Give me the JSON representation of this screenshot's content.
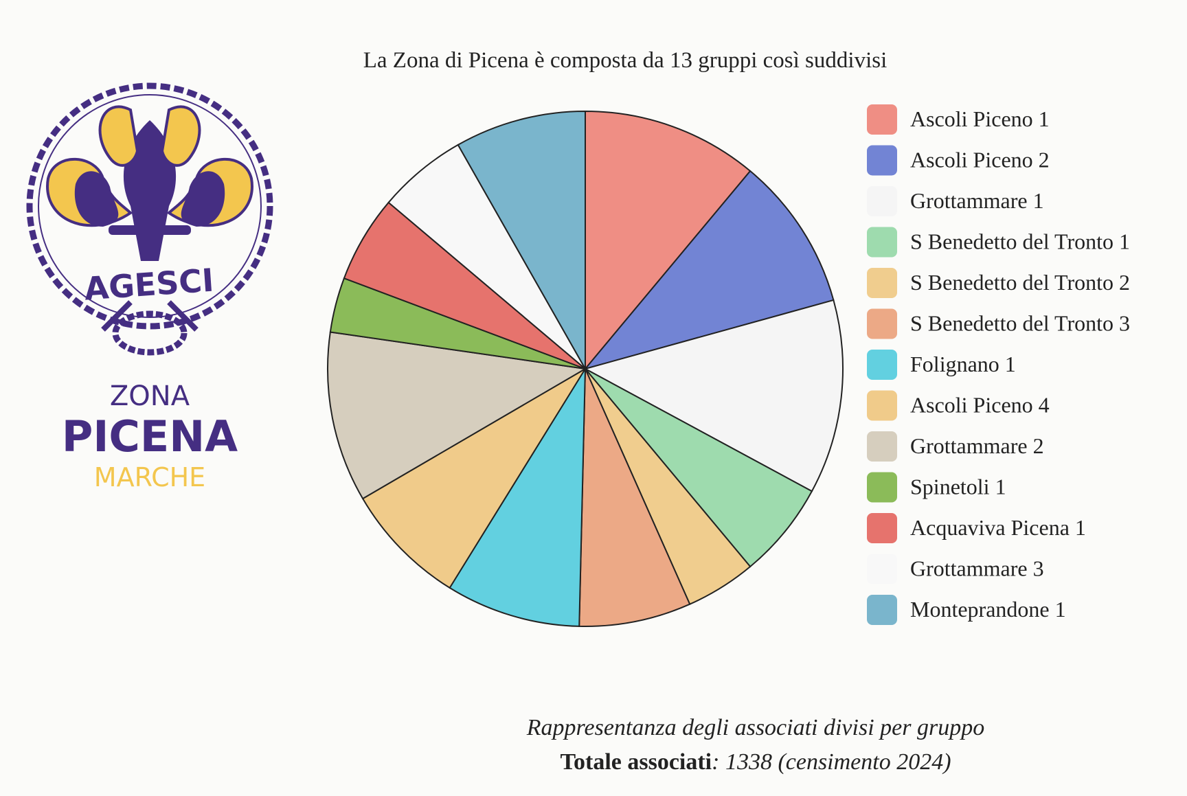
{
  "logo": {
    "emblem": "AGESCI",
    "line1": "ZONA",
    "line2": "PICENA",
    "line3": "MARCHE"
  },
  "chart_data": {
    "type": "pie",
    "title": "La Zona di Picena è composta da 13 gruppi così suddivisi",
    "categories": [
      "Ascoli Piceno 1",
      "Ascoli Piceno 2",
      "Grottammare 1",
      "S Benedetto del Tronto 1",
      "S Benedetto del Tronto 2",
      "S Benedetto del Tronto 3",
      "Folignano 1",
      "Ascoli Piceno 4",
      "Grottammare 2",
      "Spinetoli 1",
      "Acquaviva Picena 1",
      "Grottammare 3",
      "Monteprandone 1"
    ],
    "values": [
      148,
      129,
      163,
      81,
      59,
      94,
      113,
      104,
      143,
      46,
      73,
      75,
      110
    ],
    "colors": [
      "#ef8e84",
      "#7284d4",
      "#f5f5f5",
      "#9edbae",
      "#f0cd8e",
      "#eca986",
      "#62d0e0",
      "#f0cb8a",
      "#d6cebe",
      "#8bbb59",
      "#e6736d",
      "#f8f8f8",
      "#7ab5cc"
    ],
    "legend": "right"
  },
  "footer": {
    "caption": "Rappresentanza degli associati divisi per gruppo",
    "total_label": "Totale associati",
    "total_text": ": 1338 (censimento 2024)"
  }
}
